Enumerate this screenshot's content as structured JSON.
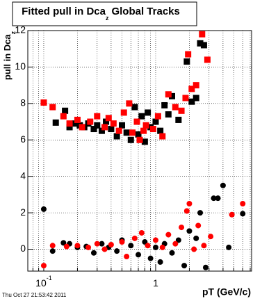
{
  "chart_data": {
    "type": "scatter",
    "title": {
      "main": "Fitted pull in Dca",
      "sub": "z",
      "rest": "Global Tracks"
    },
    "ylabel": {
      "main": "pull in Dca",
      "sub": "z"
    },
    "xlabel": "pT (GeV/c)",
    "footer": "Thu Oct 27 21:53:42 2011",
    "xscale": "log",
    "grid": true,
    "xlim": [
      0.072,
      7.2
    ],
    "ylim": [
      -1.2,
      12
    ],
    "xticks": [
      {
        "value": 0.1,
        "label": "10",
        "exponent": "-1"
      },
      1
    ],
    "xminor": [
      0.08,
      0.09,
      0.2,
      0.3,
      0.4,
      0.5,
      0.6,
      0.7,
      0.8,
      0.9,
      2,
      3,
      4,
      5,
      6,
      7
    ],
    "yticks": [
      0,
      2,
      4,
      6,
      8,
      10,
      12
    ],
    "series": [
      {
        "color": "#000000",
        "marker": "square",
        "x": [
          0.128,
          0.155,
          0.17,
          0.19,
          0.21,
          0.23,
          0.25,
          0.28,
          0.3,
          0.33,
          0.36,
          0.4,
          0.45,
          0.5,
          0.55,
          0.6,
          0.65,
          0.7,
          0.75,
          0.8,
          0.85,
          0.9,
          1.0,
          1.1,
          1.2,
          1.3,
          1.4,
          1.6,
          1.9,
          2.1,
          2.3,
          2.5,
          2.7
        ],
        "values": [
          6.95,
          7.6,
          6.7,
          6.9,
          6.8,
          6.7,
          6.9,
          6.6,
          6.8,
          6.5,
          7.0,
          6.6,
          6.2,
          6.8,
          6.4,
          6.0,
          7.8,
          6.3,
          7.3,
          5.9,
          7.5,
          6.7,
          7.0,
          6.5,
          7.9,
          7.4,
          8.4,
          7.1,
          10.3,
          8.1,
          8.3,
          11.3,
          11.2
        ]
      },
      {
        "color": "#ff0000",
        "marker": "square",
        "x": [
          0.1,
          0.12,
          0.15,
          0.17,
          0.2,
          0.22,
          0.26,
          0.3,
          0.35,
          0.38,
          0.42,
          0.47,
          0.52,
          0.58,
          0.62,
          0.68,
          0.72,
          0.78,
          0.82,
          0.95,
          1.05,
          1.15,
          1.3,
          1.5,
          1.7,
          1.85,
          1.95,
          2.1,
          2.3,
          2.6,
          2.9
        ],
        "values": [
          8.05,
          7.8,
          7.3,
          6.9,
          7.1,
          6.7,
          7.0,
          7.3,
          6.7,
          7.2,
          6.9,
          6.5,
          7.5,
          8.0,
          6.4,
          7.0,
          6.0,
          6.5,
          6.8,
          6.6,
          7.3,
          6.2,
          8.5,
          7.8,
          7.6,
          8.3,
          10.7,
          8.8,
          9.0,
          11.8,
          10.4
        ]
      },
      {
        "color": "#000000",
        "marker": "circle",
        "x": [
          0.1,
          0.12,
          0.15,
          0.17,
          0.2,
          0.24,
          0.28,
          0.33,
          0.38,
          0.45,
          0.5,
          0.6,
          0.7,
          0.8,
          0.9,
          1.0,
          1.1,
          1.2,
          1.4,
          1.6,
          1.8,
          2.0,
          2.3,
          2.5,
          2.8,
          3.3,
          3.6,
          4.0,
          4.5,
          6.0
        ],
        "values": [
          2.2,
          -0.1,
          0.35,
          0.3,
          0.1,
          0.15,
          -0.2,
          0.3,
          0.1,
          -0.1,
          0.5,
          0.2,
          -0.3,
          0.4,
          -0.5,
          0.1,
          -0.7,
          0.3,
          -0.2,
          0.5,
          -0.9,
          1.0,
          0.6,
          2.0,
          -1.0,
          2.8,
          2.8,
          3.5,
          0.1,
          1.95
        ]
      },
      {
        "color": "#ff0000",
        "marker": "circle",
        "x": [
          0.1,
          0.12,
          0.16,
          0.2,
          0.25,
          0.3,
          0.35,
          0.4,
          0.5,
          0.55,
          0.65,
          0.75,
          0.85,
          1.0,
          1.15,
          1.3,
          1.5,
          1.7,
          1.9,
          2.0,
          2.2,
          2.4,
          2.7,
          3.1,
          4.8,
          6.0
        ],
        "values": [
          -0.9,
          0.2,
          0.15,
          0.2,
          0.1,
          0.3,
          0.0,
          0.25,
          0.4,
          -0.4,
          0.6,
          0.9,
          0.2,
          0.5,
          0.1,
          0.8,
          0.3,
          1.2,
          2.1,
          2.5,
          0.0,
          1.3,
          0.2,
          0.7,
          1.9,
          2.5
        ]
      }
    ]
  }
}
